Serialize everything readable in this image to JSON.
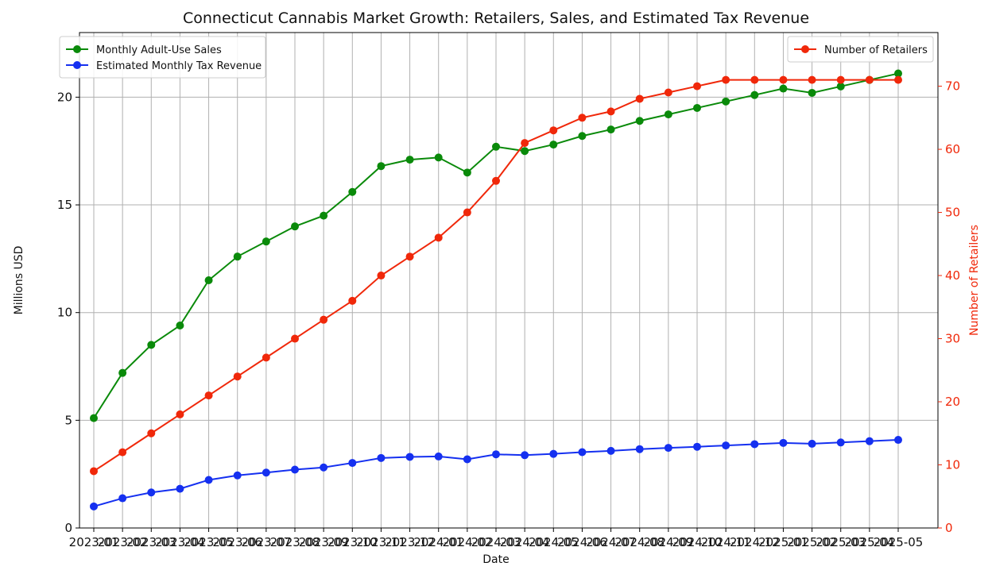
{
  "chart_data": {
    "type": "line",
    "title": "Connecticut Cannabis Market Growth: Retailers, Sales, and Estimated Tax Revenue",
    "xlabel": "Date",
    "ylabel_left": "Millions USD",
    "ylabel_right": "Number of Retailers",
    "ylim_left": [
      0,
      23
    ],
    "ylim_right": [
      0,
      78.5
    ],
    "yticks_left": [
      0,
      5,
      10,
      15,
      20
    ],
    "yticks_right": [
      0,
      10,
      20,
      30,
      40,
      50,
      60,
      70
    ],
    "grid": true,
    "legend_left_placement": "top-left",
    "legend_right_placement": "top-right",
    "x": [
      "2023-01",
      "2023-02",
      "2023-03",
      "2023-04",
      "2023-05",
      "2023-06",
      "2023-07",
      "2023-08",
      "2023-09",
      "2023-10",
      "2023-11",
      "2023-12",
      "2024-01",
      "2024-02",
      "2024-03",
      "2024-04",
      "2024-05",
      "2024-06",
      "2024-07",
      "2024-08",
      "2024-09",
      "2024-10",
      "2024-11",
      "2024-12",
      "2025-01",
      "2025-02",
      "2025-03",
      "2025-04",
      "2025-05"
    ],
    "series": [
      {
        "name": "Monthly Adult-Use Sales",
        "axis": "left",
        "color": "#0a8a0a",
        "values": [
          5.1,
          7.2,
          8.5,
          9.4,
          11.5,
          12.6,
          13.3,
          14.0,
          14.5,
          15.6,
          16.8,
          17.1,
          17.2,
          16.5,
          17.7,
          17.5,
          17.8,
          18.2,
          18.5,
          18.9,
          19.2,
          19.5,
          19.8,
          20.1,
          20.4,
          20.2,
          20.5,
          20.8,
          21.1
        ]
      },
      {
        "name": "Estimated Monthly Tax Revenue",
        "axis": "left",
        "color": "#1530f0",
        "values": [
          1.0,
          1.38,
          1.65,
          1.82,
          2.23,
          2.44,
          2.57,
          2.71,
          2.81,
          3.02,
          3.25,
          3.3,
          3.32,
          3.19,
          3.42,
          3.38,
          3.44,
          3.52,
          3.58,
          3.66,
          3.72,
          3.77,
          3.83,
          3.89,
          3.95,
          3.91,
          3.97,
          4.03,
          4.09
        ]
      },
      {
        "name": "Number of Retailers",
        "axis": "right",
        "color": "#f0280a",
        "values": [
          9,
          12,
          15,
          18,
          21,
          24,
          27,
          30,
          33,
          36,
          40,
          43,
          46,
          50,
          55,
          61,
          63,
          65,
          66,
          68,
          69,
          70,
          71,
          71,
          71,
          71,
          71,
          71,
          71
        ]
      }
    ]
  }
}
